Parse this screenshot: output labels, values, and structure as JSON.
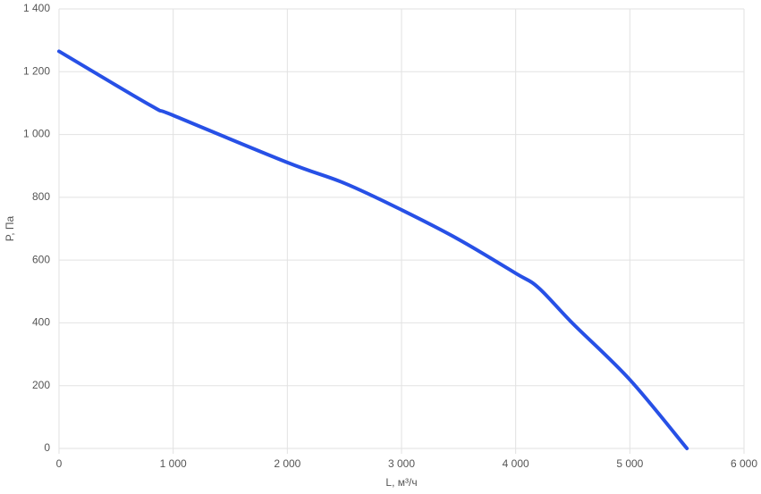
{
  "chart_data": {
    "type": "line",
    "x_label": "L, м³/ч",
    "y_label": "P, Па",
    "x": [
      0,
      800,
      1000,
      2000,
      2500,
      3000,
      3500,
      4000,
      4200,
      4500,
      5000,
      5500
    ],
    "series": [
      {
        "color": "#2750e6",
        "values": [
          1265,
          1093,
          1061,
          911,
          845,
          760,
          666,
          558,
          512,
          398,
          219,
          0
        ]
      }
    ],
    "xlim": [
      0,
      6000
    ],
    "xticks": [
      0,
      {
        "value": 1000,
        "label": "1 000"
      },
      {
        "value": 2000,
        "label": "2 000"
      },
      {
        "value": 3000,
        "label": "3 000"
      },
      {
        "value": 4000,
        "label": "4 000"
      },
      {
        "value": 5000,
        "label": "5 000"
      },
      {
        "value": 6000,
        "label": "6 000"
      }
    ],
    "ylim": [
      0,
      1400
    ],
    "yticks": [
      0,
      200,
      400,
      600,
      800,
      {
        "value": 1000,
        "label": "1 000"
      },
      {
        "value": 1200,
        "label": "1 200"
      },
      {
        "value": 1400,
        "label": "1 400"
      }
    ],
    "grid": true
  }
}
